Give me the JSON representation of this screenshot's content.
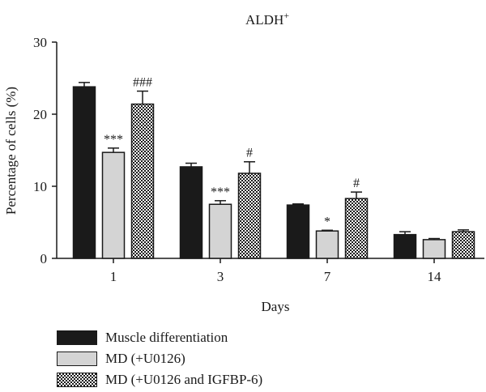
{
  "chart_data": {
    "type": "bar",
    "title": "ALDH",
    "title_superscript": "+",
    "xlabel": "Days",
    "ylabel": "Percentage of cells (%)",
    "categories": [
      "1",
      "3",
      "7",
      "14"
    ],
    "ylim": [
      0,
      30
    ],
    "yticks": [
      "0",
      "10",
      "20",
      "30"
    ],
    "grid": false,
    "legend_position": "bottom-left",
    "series": [
      {
        "name": "Muscle differentiation",
        "fill": "solid",
        "color": "#1a1a1a",
        "values": [
          23.8,
          12.7,
          7.4,
          3.3
        ],
        "errors": [
          0.6,
          0.5,
          0.15,
          0.4
        ],
        "annotations": [
          "",
          "",
          "",
          ""
        ]
      },
      {
        "name": "MD (+U0126)",
        "fill": "solid",
        "color": "#d4d4d4",
        "values": [
          14.7,
          7.5,
          3.8,
          2.6
        ],
        "errors": [
          0.6,
          0.5,
          0.1,
          0.15
        ],
        "annotations": [
          "***",
          "***",
          "*",
          ""
        ]
      },
      {
        "name": "MD (+U0126 and IGFBP-6)",
        "fill": "checker",
        "color": "#1a1a1a",
        "values": [
          21.4,
          11.8,
          8.3,
          3.7
        ],
        "errors": [
          1.8,
          1.6,
          0.9,
          0.25
        ],
        "annotations": [
          "###",
          "#",
          "#",
          ""
        ]
      }
    ]
  }
}
